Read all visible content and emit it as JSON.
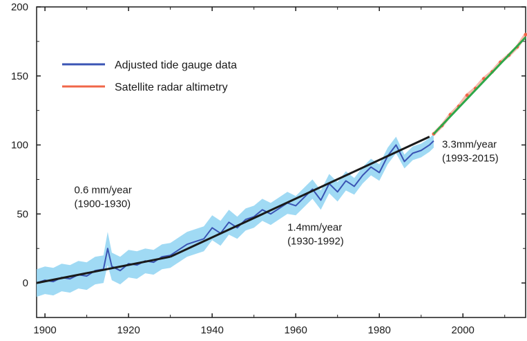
{
  "chart_data": {
    "type": "line",
    "title": "",
    "xlabel": "",
    "ylabel": "",
    "xlim": [
      1898,
      2015
    ],
    "ylim": [
      -25,
      200
    ],
    "x_ticks": [
      1900,
      1920,
      1940,
      1960,
      1980,
      2000
    ],
    "y_ticks": [
      0,
      50,
      100,
      150,
      200
    ],
    "grid": false,
    "legend_position": "top-left",
    "series": [
      {
        "name": "Adjusted tide gauge data",
        "color": "#3a54b4",
        "uncertainty_color": "#8fd3f2",
        "x": [
          1898,
          1900,
          1902,
          1904,
          1906,
          1908,
          1910,
          1912,
          1914,
          1915,
          1916,
          1918,
          1920,
          1922,
          1924,
          1926,
          1928,
          1930,
          1932,
          1934,
          1936,
          1938,
          1940,
          1942,
          1944,
          1946,
          1948,
          1950,
          1952,
          1954,
          1956,
          1958,
          1960,
          1962,
          1964,
          1966,
          1968,
          1970,
          1972,
          1974,
          1976,
          1978,
          1980,
          1982,
          1984,
          1986,
          1988,
          1990,
          1992,
          1993
        ],
        "y": [
          0,
          2,
          1,
          4,
          3,
          6,
          5,
          9,
          10,
          25,
          12,
          9,
          14,
          13,
          16,
          15,
          19,
          20,
          24,
          28,
          30,
          32,
          40,
          36,
          44,
          40,
          46,
          48,
          53,
          50,
          54,
          58,
          56,
          62,
          68,
          60,
          72,
          66,
          74,
          70,
          78,
          84,
          80,
          92,
          100,
          88,
          94,
          96,
          100,
          103
        ],
        "band": [
          10,
          10,
          10,
          10,
          10,
          10,
          10,
          10,
          10,
          12,
          10,
          10,
          10,
          10,
          9,
          9,
          9,
          9,
          9,
          9,
          9,
          9,
          9,
          9,
          9,
          8,
          8,
          8,
          8,
          8,
          8,
          8,
          7,
          7,
          7,
          7,
          7,
          7,
          7,
          6,
          6,
          6,
          6,
          6,
          6,
          5,
          5,
          5,
          5,
          5
        ]
      },
      {
        "name": "Satellite radar altimetry",
        "color": "#f06648",
        "x": [
          1993,
          1995,
          1997,
          1999,
          2001,
          2003,
          2005,
          2007,
          2009,
          2011,
          2013,
          2015
        ],
        "y": [
          108,
          114,
          122,
          128,
          136,
          141,
          148,
          153,
          160,
          165,
          171,
          180
        ]
      }
    ],
    "trend_lines": [
      {
        "period": "1900-1930",
        "rate": "0.6 mm/year",
        "color": "#1a1a1a",
        "x": [
          1898,
          1930
        ],
        "y": [
          0,
          19
        ]
      },
      {
        "period": "1930-1992",
        "rate": "1.4mm/year",
        "color": "#1a1a1a",
        "x": [
          1930,
          1992
        ],
        "y": [
          19,
          106
        ]
      },
      {
        "period": "1993-2015",
        "rate": "3.3mm/year",
        "color": "#2ca84a",
        "x": [
          1993,
          2015
        ],
        "y": [
          108,
          178
        ]
      }
    ],
    "annotations": [
      {
        "line1": "0.6 mm/year",
        "line2": "(1900-1930)",
        "x": 1907,
        "y": 65
      },
      {
        "line1": "1.4mm/year",
        "line2": "(1930-1992)",
        "x": 1958,
        "y": 38
      },
      {
        "line1": "3.3mm/year",
        "line2": "(1993-2015)",
        "x": 1995,
        "y": 98
      }
    ]
  }
}
